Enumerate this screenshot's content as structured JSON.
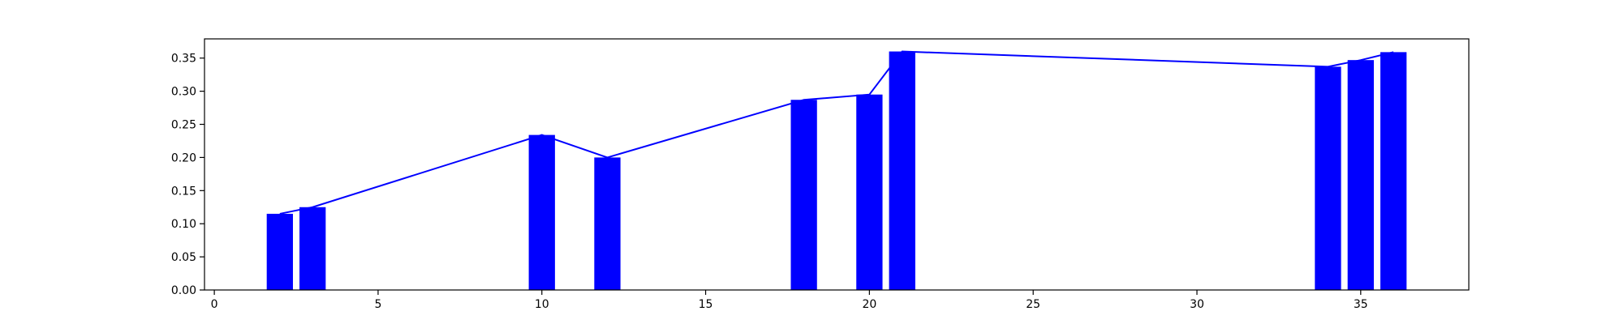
{
  "chart_data": {
    "type": "bar",
    "x": [
      2,
      3,
      10,
      12,
      18,
      20,
      21,
      34,
      35,
      36
    ],
    "values": [
      0.115,
      0.125,
      0.234,
      0.2,
      0.287,
      0.295,
      0.36,
      0.337,
      0.347,
      0.359
    ],
    "bar_width": 0.8,
    "overlay_line": true,
    "title": "",
    "xlabel": "",
    "ylabel": "",
    "xlim": [
      -0.3,
      38.3
    ],
    "ylim": [
      0,
      0.379
    ],
    "xticks": [
      0,
      5,
      10,
      15,
      20,
      25,
      30,
      35
    ],
    "yticks": [
      0.0,
      0.05,
      0.1,
      0.15,
      0.2,
      0.25,
      0.3,
      0.35
    ],
    "xtick_labels": [
      "0",
      "5",
      "10",
      "15",
      "20",
      "25",
      "30",
      "35"
    ],
    "ytick_labels": [
      "0.00",
      "0.05",
      "0.10",
      "0.15",
      "0.20",
      "0.25",
      "0.30",
      "0.35"
    ],
    "grid": false,
    "colors": {
      "bar": "#0000ff",
      "line": "#0000ff",
      "axes": "#000000",
      "text": "#000000",
      "background": "#ffffff"
    }
  }
}
